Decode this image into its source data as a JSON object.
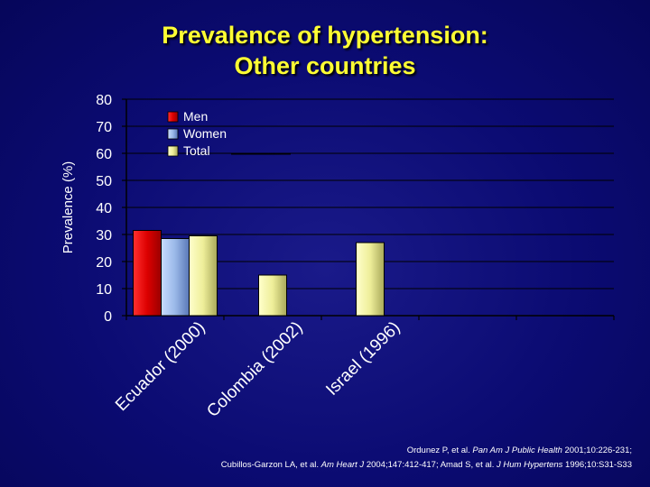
{
  "title_lines": [
    "Prevalence of hypertension:",
    "Other countries"
  ],
  "chart_data": {
    "type": "bar",
    "ylabel": "Prevalence (%)",
    "xlabel": "",
    "ylim": [
      0,
      80
    ],
    "yticks": [
      0,
      10,
      20,
      30,
      40,
      50,
      60,
      70,
      80
    ],
    "grid": true,
    "legend_position": "top-left",
    "categories": [
      "Ecuador (2000)",
      "Colombia (2002)",
      "Israel (1996)",
      "",
      ""
    ],
    "series": [
      {
        "name": "Men",
        "color": "#cc0000",
        "values": [
          31.5,
          null,
          null,
          null,
          null
        ]
      },
      {
        "name": "Women",
        "color": "#9ab8e8",
        "values": [
          28.5,
          null,
          null,
          null,
          null
        ]
      },
      {
        "name": "Total",
        "color": "#eeee99",
        "values": [
          29.5,
          15,
          27,
          null,
          null
        ]
      }
    ]
  },
  "citation": {
    "line1": [
      "Ordunez P, et al. ",
      "Pan Am J Public Health",
      " 2001;10:226-231;"
    ],
    "line2": [
      "Cubillos-Garzon LA, et al. ",
      "Am Heart J",
      " 2004;147:412-417; Amad S, et al. ",
      "J Hum Hypertens",
      " 1996;10:S31-S33"
    ]
  }
}
